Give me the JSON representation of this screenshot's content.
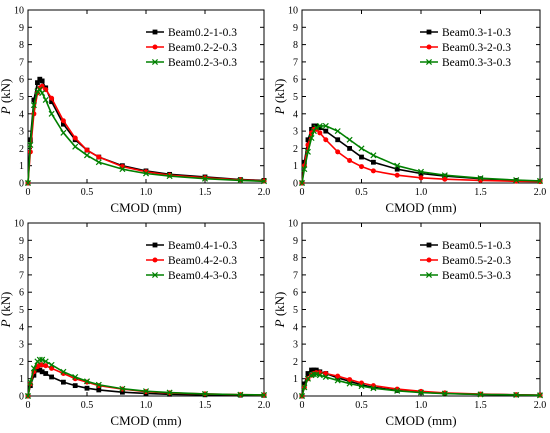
{
  "chart_data": [
    {
      "type": "line",
      "xlabel": "CMOD (mm)",
      "ylabel_italic": "P",
      "ylabel_unit": " (kN)",
      "xlim": [
        0,
        2.0
      ],
      "ylim": [
        0,
        10
      ],
      "xticks": [
        "0",
        "0.5",
        "1.0",
        "1.5",
        "2.0"
      ],
      "yticks": [
        "0",
        "1",
        "2",
        "3",
        "4",
        "5",
        "6",
        "7",
        "8",
        "9",
        "10"
      ],
      "grid": false,
      "legend_position": "top-right",
      "series": [
        {
          "name": "Beam0.2-1-0.3",
          "color": "#000000",
          "marker": "square",
          "x": [
            0,
            0.02,
            0.05,
            0.08,
            0.1,
            0.12,
            0.15,
            0.2,
            0.3,
            0.4,
            0.5,
            0.6,
            0.8,
            1.0,
            1.2,
            1.5,
            1.8,
            2.0
          ],
          "y": [
            0,
            2.5,
            4.8,
            5.8,
            6.0,
            5.9,
            5.5,
            4.7,
            3.4,
            2.5,
            1.9,
            1.5,
            1.0,
            0.7,
            0.5,
            0.35,
            0.2,
            0.15
          ]
        },
        {
          "name": "Beam0.2-2-0.3",
          "color": "#ff0000",
          "marker": "circle",
          "x": [
            0,
            0.02,
            0.05,
            0.08,
            0.1,
            0.12,
            0.15,
            0.2,
            0.3,
            0.4,
            0.5,
            0.6,
            0.8,
            1.0,
            1.2,
            1.5,
            1.8,
            2.0
          ],
          "y": [
            0,
            1.8,
            4.0,
            5.2,
            5.5,
            5.6,
            5.4,
            4.9,
            3.6,
            2.6,
            1.9,
            1.5,
            0.95,
            0.65,
            0.45,
            0.3,
            0.18,
            0.12
          ]
        },
        {
          "name": "Beam0.2-3-0.3",
          "color": "#008000",
          "marker": "x",
          "x": [
            0,
            0.02,
            0.05,
            0.08,
            0.1,
            0.12,
            0.15,
            0.2,
            0.3,
            0.4,
            0.5,
            0.6,
            0.8,
            1.0,
            1.2,
            1.5,
            1.8,
            2.0
          ],
          "y": [
            0,
            2.2,
            4.5,
            5.3,
            5.4,
            5.2,
            4.8,
            4.0,
            2.9,
            2.1,
            1.6,
            1.2,
            0.8,
            0.55,
            0.4,
            0.25,
            0.15,
            0.1
          ]
        }
      ]
    },
    {
      "type": "line",
      "xlabel": "CMOD (mm)",
      "ylabel_italic": "P",
      "ylabel_unit": " (kN)",
      "xlim": [
        0,
        2.0
      ],
      "ylim": [
        0,
        10
      ],
      "xticks": [
        "0",
        "0.5",
        "1.0",
        "1.5",
        "2.0"
      ],
      "yticks": [
        "0",
        "1",
        "2",
        "3",
        "4",
        "5",
        "6",
        "7",
        "8",
        "9",
        "10"
      ],
      "grid": false,
      "legend_position": "top-right",
      "series": [
        {
          "name": "Beam0.3-1-0.3",
          "color": "#000000",
          "marker": "square",
          "x": [
            0,
            0.02,
            0.05,
            0.08,
            0.1,
            0.12,
            0.15,
            0.2,
            0.3,
            0.4,
            0.5,
            0.6,
            0.8,
            1.0,
            1.2,
            1.5,
            1.8,
            2.0
          ],
          "y": [
            0,
            1.2,
            2.5,
            3.1,
            3.3,
            3.3,
            3.2,
            3.0,
            2.5,
            2.0,
            1.5,
            1.2,
            0.8,
            0.55,
            0.4,
            0.25,
            0.15,
            0.1
          ]
        },
        {
          "name": "Beam0.3-2-0.3",
          "color": "#ff0000",
          "marker": "circle",
          "x": [
            0,
            0.02,
            0.05,
            0.08,
            0.1,
            0.12,
            0.15,
            0.2,
            0.3,
            0.4,
            0.5,
            0.6,
            0.8,
            1.0,
            1.2,
            1.5,
            1.8,
            2.0
          ],
          "y": [
            0,
            1.0,
            2.2,
            2.9,
            3.1,
            3.1,
            2.9,
            2.5,
            1.8,
            1.3,
            0.95,
            0.7,
            0.45,
            0.3,
            0.22,
            0.15,
            0.1,
            0.08
          ]
        },
        {
          "name": "Beam0.3-3-0.3",
          "color": "#008000",
          "marker": "x",
          "x": [
            0,
            0.02,
            0.05,
            0.08,
            0.1,
            0.12,
            0.15,
            0.2,
            0.3,
            0.4,
            0.5,
            0.6,
            0.8,
            1.0,
            1.2,
            1.5,
            1.8,
            2.0
          ],
          "y": [
            0,
            0.8,
            1.8,
            2.6,
            3.0,
            3.2,
            3.3,
            3.3,
            3.0,
            2.5,
            2.0,
            1.6,
            1.0,
            0.65,
            0.45,
            0.28,
            0.17,
            0.12
          ]
        }
      ]
    },
    {
      "type": "line",
      "xlabel": "CMOD (mm)",
      "ylabel_italic": "P",
      "ylabel_unit": " (kN)",
      "xlim": [
        0,
        2.0
      ],
      "ylim": [
        0,
        10
      ],
      "xticks": [
        "0",
        "0.5",
        "1.0",
        "1.5",
        "2.0"
      ],
      "yticks": [
        "0",
        "1",
        "2",
        "3",
        "4",
        "5",
        "6",
        "7",
        "8",
        "9",
        "10"
      ],
      "grid": false,
      "legend_position": "top-right",
      "series": [
        {
          "name": "Beam0.4-1-0.3",
          "color": "#000000",
          "marker": "square",
          "x": [
            0,
            0.02,
            0.05,
            0.08,
            0.1,
            0.12,
            0.15,
            0.2,
            0.3,
            0.4,
            0.5,
            0.6,
            0.8,
            1.0,
            1.2,
            1.5,
            1.8,
            2.0
          ],
          "y": [
            0,
            0.6,
            1.2,
            1.5,
            1.5,
            1.4,
            1.3,
            1.1,
            0.8,
            0.6,
            0.45,
            0.35,
            0.22,
            0.15,
            0.1,
            0.07,
            0.05,
            0.04
          ]
        },
        {
          "name": "Beam0.4-2-0.3",
          "color": "#ff0000",
          "marker": "circle",
          "x": [
            0,
            0.02,
            0.05,
            0.08,
            0.1,
            0.12,
            0.15,
            0.2,
            0.3,
            0.4,
            0.5,
            0.6,
            0.8,
            1.0,
            1.2,
            1.5,
            1.8,
            2.0
          ],
          "y": [
            0,
            0.7,
            1.4,
            1.7,
            1.8,
            1.8,
            1.75,
            1.6,
            1.3,
            1.0,
            0.8,
            0.6,
            0.4,
            0.25,
            0.18,
            0.12,
            0.08,
            0.06
          ]
        },
        {
          "name": "Beam0.4-3-0.3",
          "color": "#008000",
          "marker": "x",
          "x": [
            0,
            0.02,
            0.05,
            0.08,
            0.1,
            0.12,
            0.15,
            0.2,
            0.3,
            0.4,
            0.5,
            0.6,
            0.8,
            1.0,
            1.2,
            1.5,
            1.8,
            2.0
          ],
          "y": [
            0,
            0.8,
            1.6,
            2.0,
            2.1,
            2.1,
            2.0,
            1.8,
            1.4,
            1.1,
            0.85,
            0.65,
            0.42,
            0.28,
            0.2,
            0.12,
            0.08,
            0.06
          ]
        }
      ]
    },
    {
      "type": "line",
      "xlabel": "CMOD (mm)",
      "ylabel_italic": "P",
      "ylabel_unit": " (kN)",
      "xlim": [
        0,
        2.0
      ],
      "ylim": [
        0,
        10
      ],
      "xticks": [
        "0",
        "0.5",
        "1.0",
        "1.5",
        "2.0"
      ],
      "yticks": [
        "0",
        "1",
        "2",
        "3",
        "4",
        "5",
        "6",
        "7",
        "8",
        "9",
        "10"
      ],
      "grid": false,
      "legend_position": "top-right",
      "series": [
        {
          "name": "Beam0.5-1-0.3",
          "color": "#000000",
          "marker": "square",
          "x": [
            0,
            0.02,
            0.05,
            0.08,
            0.1,
            0.12,
            0.15,
            0.2,
            0.3,
            0.4,
            0.5,
            0.6,
            0.8,
            1.0,
            1.2,
            1.5,
            1.8,
            2.0
          ],
          "y": [
            0,
            0.7,
            1.3,
            1.5,
            1.5,
            1.5,
            1.4,
            1.3,
            1.05,
            0.85,
            0.65,
            0.5,
            0.32,
            0.22,
            0.15,
            0.1,
            0.07,
            0.05
          ]
        },
        {
          "name": "Beam0.5-2-0.3",
          "color": "#ff0000",
          "marker": "circle",
          "x": [
            0,
            0.02,
            0.05,
            0.08,
            0.1,
            0.12,
            0.15,
            0.2,
            0.3,
            0.4,
            0.5,
            0.6,
            0.8,
            1.0,
            1.2,
            1.5,
            1.8,
            2.0
          ],
          "y": [
            0,
            0.5,
            1.0,
            1.2,
            1.3,
            1.35,
            1.35,
            1.3,
            1.15,
            0.95,
            0.75,
            0.6,
            0.4,
            0.27,
            0.18,
            0.11,
            0.07,
            0.05
          ]
        },
        {
          "name": "Beam0.5-3-0.3",
          "color": "#008000",
          "marker": "x",
          "x": [
            0,
            0.02,
            0.05,
            0.08,
            0.1,
            0.12,
            0.15,
            0.2,
            0.3,
            0.4,
            0.5,
            0.6,
            0.8,
            1.0,
            1.2,
            1.5,
            1.8,
            2.0
          ],
          "y": [
            0,
            0.5,
            1.0,
            1.2,
            1.25,
            1.25,
            1.2,
            1.1,
            0.9,
            0.72,
            0.57,
            0.45,
            0.3,
            0.2,
            0.14,
            0.09,
            0.06,
            0.04
          ]
        }
      ]
    }
  ]
}
